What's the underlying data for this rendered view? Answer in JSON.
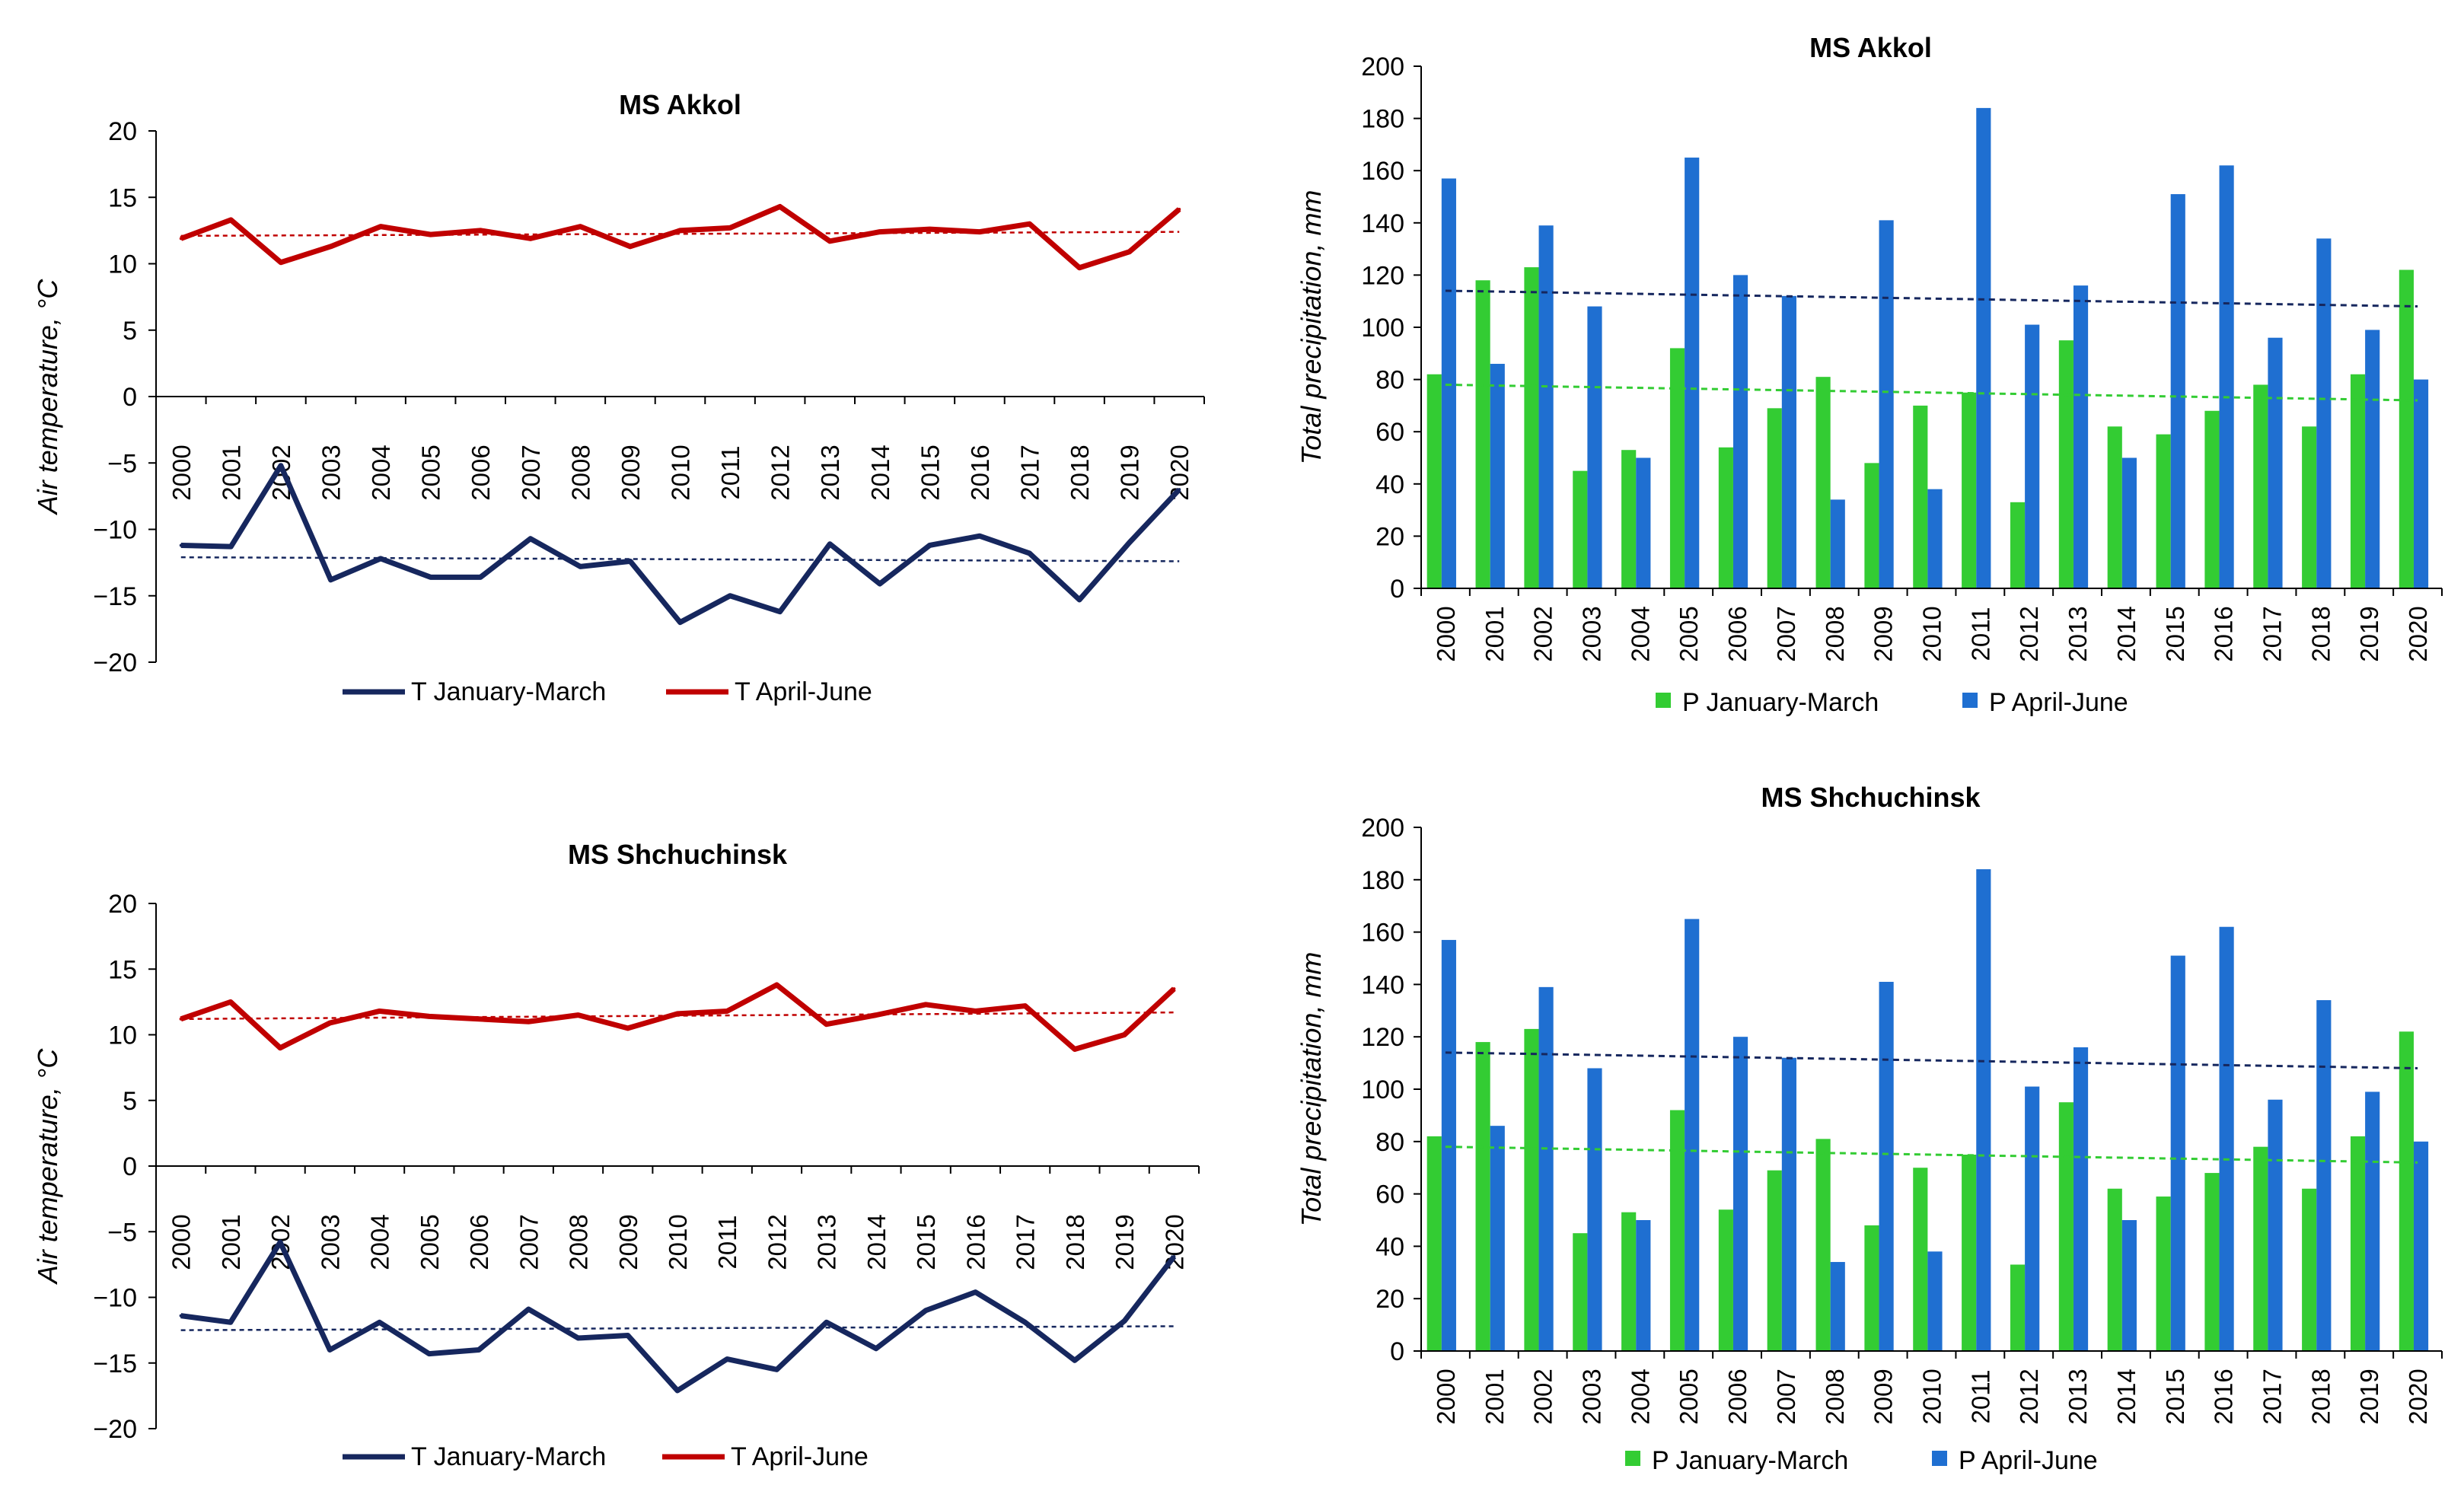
{
  "chart_data": [
    {
      "type": "line",
      "title": "MS Akkol",
      "xlabel": "",
      "ylabel": "Air temperature, °C",
      "ylim": [
        -20,
        20
      ],
      "yticks": [
        "20",
        "15",
        "10",
        "5",
        "0",
        "−5",
        "−10",
        "−15",
        "−20"
      ],
      "ytick_values": [
        20,
        15,
        10,
        5,
        0,
        -5,
        -10,
        -15,
        -20
      ],
      "categories": [
        "2000",
        "2001",
        "2002",
        "2003",
        "2004",
        "2005",
        "2006",
        "2007",
        "2008",
        "2009",
        "2010",
        "2011",
        "2012",
        "2013",
        "2014",
        "2015",
        "2016",
        "2017",
        "2018",
        "2019",
        "2020"
      ],
      "series": [
        {
          "name": "T January-March",
          "color": "#16275e",
          "values": [
            -11.2,
            -11.3,
            -5.2,
            -13.8,
            -12.2,
            -13.6,
            -13.6,
            -10.7,
            -12.8,
            -12.4,
            -17.0,
            -15.0,
            -16.2,
            -11.1,
            -14.1,
            -11.2,
            -10.5,
            -11.8,
            -15.3,
            -11.0,
            -7.0
          ],
          "trend": [
            -12.1,
            -12.4
          ]
        },
        {
          "name": "T April-June",
          "color": "#c00000",
          "values": [
            11.9,
            13.3,
            10.1,
            11.3,
            12.8,
            12.2,
            12.5,
            11.9,
            12.8,
            11.3,
            12.5,
            12.7,
            14.3,
            11.7,
            12.4,
            12.6,
            12.4,
            13.0,
            9.7,
            10.9,
            14.1
          ],
          "trend": [
            12.1,
            12.4
          ]
        }
      ],
      "legend": "bottom"
    },
    {
      "type": "bar",
      "title": "MS Akkol",
      "xlabel": "",
      "ylabel": "Total precipitation, mm",
      "ylim": [
        0,
        200
      ],
      "yticks": [
        "200",
        "180",
        "160",
        "140",
        "120",
        "100",
        "80",
        "60",
        "40",
        "20",
        "0"
      ],
      "ytick_values": [
        200,
        180,
        160,
        140,
        120,
        100,
        80,
        60,
        40,
        20,
        0
      ],
      "categories": [
        "2000",
        "2001",
        "2002",
        "2003",
        "2004",
        "2005",
        "2006",
        "2007",
        "2008",
        "2009",
        "2010",
        "2011",
        "2012",
        "2013",
        "2014",
        "2015",
        "2016",
        "2017",
        "2018",
        "2019",
        "2020"
      ],
      "series": [
        {
          "name": "P January-March",
          "color": "#33cc33",
          "values": [
            82,
            118,
            123,
            45,
            53,
            92,
            54,
            69,
            81,
            48,
            70,
            75,
            33,
            95,
            62,
            59,
            68,
            78,
            62,
            82,
            122
          ],
          "trend": [
            78,
            72
          ],
          "trend_color": "#33cc33"
        },
        {
          "name": "P April-June",
          "color": "#1f6fd1",
          "values": [
            157,
            86,
            139,
            108,
            50,
            165,
            120,
            112,
            34,
            141,
            38,
            184,
            101,
            116,
            50,
            151,
            162,
            96,
            134,
            99,
            80
          ],
          "trend": [
            114,
            108
          ],
          "trend_color": "#16275e"
        }
      ],
      "legend": "bottom"
    },
    {
      "type": "line",
      "title": "MS Shchuchinsk",
      "xlabel": "",
      "ylabel": "Air temperature, °C",
      "ylim": [
        -20,
        20
      ],
      "yticks": [
        "20",
        "15",
        "10",
        "5",
        "0",
        "−5",
        "−10",
        "−15",
        "−20"
      ],
      "ytick_values": [
        20,
        15,
        10,
        5,
        0,
        -5,
        -10,
        -15,
        -20
      ],
      "categories": [
        "2000",
        "2001",
        "2002",
        "2003",
        "2004",
        "2005",
        "2006",
        "2007",
        "2008",
        "2009",
        "2010",
        "2011",
        "2012",
        "2013",
        "2014",
        "2015",
        "2016",
        "2017",
        "2018",
        "2019",
        "2020"
      ],
      "series": [
        {
          "name": "T January-March",
          "color": "#16275e",
          "values": [
            -11.4,
            -11.9,
            -5.8,
            -14.0,
            -11.9,
            -14.3,
            -14.0,
            -10.9,
            -13.1,
            -12.9,
            -17.1,
            -14.7,
            -15.5,
            -11.9,
            -13.9,
            -11.0,
            -9.6,
            -11.9,
            -14.8,
            -11.8,
            -6.9
          ],
          "trend": [
            -12.5,
            -12.2
          ]
        },
        {
          "name": "T April-June",
          "color": "#c00000",
          "values": [
            11.2,
            12.5,
            9.0,
            10.9,
            11.8,
            11.4,
            11.2,
            11.0,
            11.5,
            10.5,
            11.6,
            11.8,
            13.8,
            10.8,
            11.5,
            12.3,
            11.8,
            12.2,
            8.9,
            10.0,
            13.5
          ],
          "trend": [
            11.2,
            11.7
          ]
        }
      ],
      "legend": "bottom"
    },
    {
      "type": "bar",
      "title": "MS Shchuchinsk",
      "xlabel": "",
      "ylabel": "Total precipitation, mm",
      "ylim": [
        0,
        200
      ],
      "yticks": [
        "200",
        "180",
        "160",
        "140",
        "120",
        "100",
        "80",
        "60",
        "40",
        "20",
        "0"
      ],
      "ytick_values": [
        200,
        180,
        160,
        140,
        120,
        100,
        80,
        60,
        40,
        20,
        0
      ],
      "categories": [
        "2000",
        "2001",
        "2002",
        "2003",
        "2004",
        "2005",
        "2006",
        "2007",
        "2008",
        "2009",
        "2010",
        "2011",
        "2012",
        "2013",
        "2014",
        "2015",
        "2016",
        "2017",
        "2018",
        "2019",
        "2020"
      ],
      "series": [
        {
          "name": "P January-March",
          "color": "#33cc33",
          "values": [
            82,
            118,
            123,
            45,
            53,
            92,
            54,
            69,
            81,
            48,
            70,
            75,
            33,
            95,
            62,
            59,
            68,
            78,
            62,
            82,
            122
          ],
          "trend": [
            78,
            72
          ],
          "trend_color": "#33cc33"
        },
        {
          "name": "P April-June",
          "color": "#1f6fd1",
          "values": [
            157,
            86,
            139,
            108,
            50,
            165,
            120,
            112,
            34,
            141,
            38,
            184,
            101,
            116,
            50,
            151,
            162,
            96,
            134,
            99,
            80
          ],
          "trend": [
            114,
            108
          ],
          "trend_color": "#16275e"
        }
      ],
      "legend": "bottom"
    }
  ]
}
